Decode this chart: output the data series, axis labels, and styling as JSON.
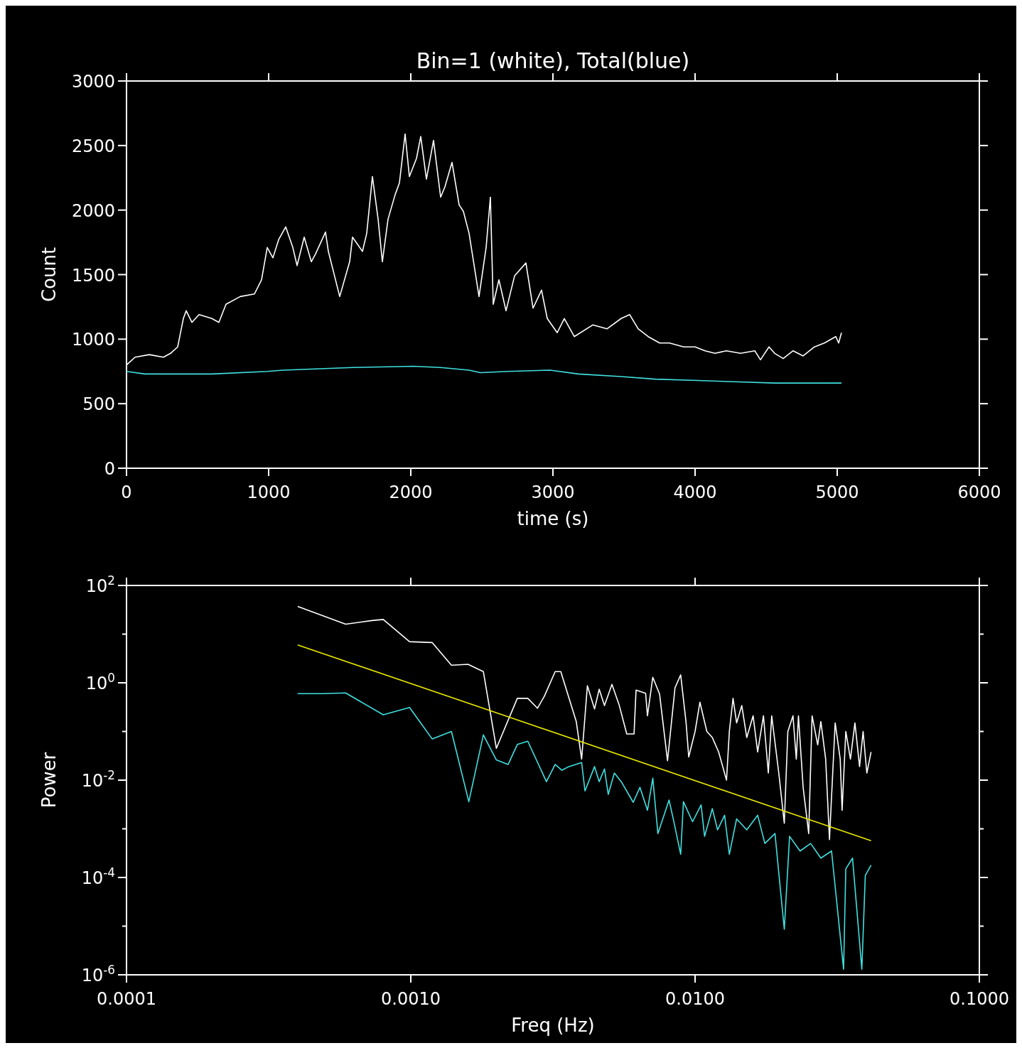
{
  "chart_data": [
    {
      "type": "line",
      "title": "Bin=1  (white), Total(blue)",
      "xlabel": "time (s)",
      "ylabel": "Count",
      "xlim": [
        0,
        6000
      ],
      "ylim": [
        0,
        3000
      ],
      "xticks": [
        0,
        1000,
        2000,
        3000,
        4000,
        5000,
        6000
      ],
      "yticks": [
        0,
        500,
        1000,
        1500,
        2000,
        2500,
        3000
      ],
      "series": [
        {
          "color": "#ffffff",
          "x": [
            0,
            60,
            160,
            260,
            310,
            360,
            400,
            420,
            460,
            510,
            600,
            650,
            700,
            800,
            900,
            950,
            990,
            1030,
            1070,
            1120,
            1170,
            1200,
            1250,
            1300,
            1330,
            1400,
            1420,
            1500,
            1570,
            1590,
            1660,
            1690,
            1730,
            1770,
            1800,
            1840,
            1890,
            1920,
            1960,
            1990,
            2040,
            2070,
            2110,
            2160,
            2210,
            2240,
            2290,
            2340,
            2370,
            2410,
            2480,
            2530,
            2560,
            2580,
            2620,
            2670,
            2730,
            2810,
            2860,
            2920,
            2960,
            3030,
            3080,
            3150,
            3280,
            3380,
            3480,
            3540,
            3600,
            3670,
            3750,
            3820,
            3920,
            4000,
            4070,
            4140,
            4220,
            4320,
            4420,
            4460,
            4520,
            4560,
            4620,
            4690,
            4760,
            4840,
            4910,
            4990,
            5010,
            5030
          ],
          "values": [
            800,
            860,
            880,
            860,
            890,
            940,
            1160,
            1220,
            1130,
            1190,
            1160,
            1130,
            1270,
            1330,
            1350,
            1460,
            1710,
            1630,
            1770,
            1870,
            1710,
            1570,
            1790,
            1600,
            1660,
            1830,
            1680,
            1330,
            1600,
            1790,
            1680,
            1820,
            2260,
            1930,
            1600,
            1930,
            2120,
            2210,
            2590,
            2260,
            2400,
            2570,
            2240,
            2540,
            2100,
            2180,
            2370,
            2040,
            1990,
            1820,
            1330,
            1710,
            2100,
            1270,
            1460,
            1220,
            1490,
            1590,
            1240,
            1380,
            1160,
            1050,
            1160,
            1020,
            1110,
            1080,
            1160,
            1190,
            1080,
            1020,
            970,
            970,
            940,
            940,
            910,
            890,
            910,
            890,
            910,
            840,
            940,
            890,
            850,
            910,
            870,
            940,
            970,
            1020,
            970,
            1050
          ]
        },
        {
          "color": "#40e0e0",
          "x": [
            0,
            130,
            600,
            990,
            1100,
            1590,
            2020,
            2210,
            2410,
            2490,
            2680,
            2980,
            3180,
            3480,
            3720,
            4020,
            4270,
            4560,
            4810,
            5030
          ],
          "values": [
            750,
            730,
            730,
            750,
            760,
            780,
            790,
            780,
            760,
            740,
            750,
            760,
            730,
            710,
            690,
            680,
            670,
            660,
            660,
            660
          ]
        }
      ]
    },
    {
      "type": "line",
      "xlabel": "Freq (Hz)",
      "ylabel": "Power",
      "log": "xy",
      "xlim": [
        0.0001,
        0.1
      ],
      "ylim": [
        1e-06,
        100
      ],
      "xticks": [
        {
          "value": 0.0001,
          "label": "0.0001"
        },
        {
          "value": 0.001,
          "label": "0.0010"
        },
        {
          "value": 0.01,
          "label": "0.0100"
        },
        {
          "value": 0.1,
          "label": "0.1000"
        }
      ],
      "yticks": [
        {
          "value": 1e-06,
          "label": "10$^{-6}$"
        },
        {
          "value": 1e-05,
          "label": null
        },
        {
          "value": 0.0001,
          "label": "10$^{-4}$"
        },
        {
          "value": 0.001,
          "label": null
        },
        {
          "value": 0.01,
          "label": "10$^{-2}$"
        },
        {
          "value": 0.1,
          "label": null
        },
        {
          "value": 1,
          "label": "10$^{0}$"
        },
        {
          "value": 10,
          "label": null
        },
        {
          "value": 100,
          "label": "10$^{2}$"
        }
      ],
      "series": [
        {
          "color": "#ffffff",
          "x": [
            0.0004,
            0.00059,
            0.00073,
            0.0008,
            0.00099,
            0.00119,
            0.00139,
            0.00159,
            0.0018,
            0.002,
            0.00237,
            0.00258,
            0.00279,
            0.00295,
            0.00322,
            0.00337,
            0.00382,
            0.00399,
            0.00418,
            0.00443,
            0.0046,
            0.0048,
            0.0051,
            0.0054,
            0.00575,
            0.0061,
            0.0062,
            0.0067,
            0.0068,
            0.0071,
            0.0075,
            0.008,
            0.0085,
            0.0089,
            0.0093,
            0.0095,
            0.01,
            0.0104,
            0.011,
            0.0115,
            0.0121,
            0.0129,
            0.0132,
            0.0136,
            0.014,
            0.0146,
            0.0152,
            0.016,
            0.0166,
            0.0174,
            0.0181,
            0.0186,
            0.0197,
            0.0206,
            0.0212,
            0.0221,
            0.0227,
            0.0231,
            0.024,
            0.0251,
            0.0258,
            0.027,
            0.0277,
            0.0288,
            0.0297,
            0.0311,
            0.0324,
            0.0329,
            0.0339,
            0.0352,
            0.0365,
            0.0379,
            0.039,
            0.0402,
            0.0416
          ],
          "values": [
            37,
            16,
            19,
            20,
            7,
            6.7,
            2.3,
            2.4,
            1.7,
            0.045,
            0.48,
            0.48,
            0.3,
            0.53,
            1.7,
            1.7,
            0.16,
            0.027,
            0.87,
            0.29,
            0.74,
            0.34,
            0.93,
            0.36,
            0.089,
            0.089,
            0.71,
            0.61,
            0.21,
            1.3,
            0.59,
            0.025,
            0.79,
            1.45,
            0.15,
            0.03,
            0.1,
            0.4,
            0.1,
            0.075,
            0.038,
            0.01,
            0.1,
            0.48,
            0.15,
            0.34,
            0.075,
            0.21,
            0.038,
            0.21,
            0.014,
            0.21,
            0.014,
            0.0013,
            0.1,
            0.21,
            0.027,
            0.21,
            0.007,
            0.0008,
            0.21,
            0.053,
            0.16,
            0.027,
            0.0006,
            0.15,
            0.027,
            0.0024,
            0.1,
            0.027,
            0.15,
            0.019,
            0.1,
            0.014,
            0.038
          ]
        },
        {
          "color": "#40e0e0",
          "x": [
            0.0004,
            0.00049,
            0.00059,
            0.0008,
            0.00099,
            0.00119,
            0.00139,
            0.0016,
            0.0018,
            0.002,
            0.0022,
            0.00237,
            0.00258,
            0.003,
            0.00322,
            0.0034,
            0.0036,
            0.00399,
            0.0041,
            0.00443,
            0.0046,
            0.0048,
            0.00495,
            0.0052,
            0.0055,
            0.00606,
            0.0064,
            0.0068,
            0.0071,
            0.0074,
            0.0081,
            0.0084,
            0.0089,
            0.0091,
            0.0098,
            0.0105,
            0.0108,
            0.0115,
            0.012,
            0.0127,
            0.0132,
            0.014,
            0.0152,
            0.0166,
            0.0176,
            0.0191,
            0.0206,
            0.0215,
            0.0234,
            0.0255,
            0.0277,
            0.0302,
            0.0333,
            0.0339,
            0.0358,
            0.0386,
            0.0397,
            0.0416
          ],
          "values": [
            0.6,
            0.6,
            0.62,
            0.22,
            0.31,
            0.07,
            0.1,
            0.0036,
            0.085,
            0.026,
            0.021,
            0.054,
            0.063,
            0.0093,
            0.021,
            0.016,
            0.019,
            0.023,
            0.006,
            0.019,
            0.0093,
            0.017,
            0.0051,
            0.014,
            0.0093,
            0.0035,
            0.0071,
            0.0024,
            0.011,
            0.0008,
            0.0039,
            0.0015,
            0.0003,
            0.0036,
            0.0014,
            0.0031,
            0.0007,
            0.0026,
            0.00095,
            0.0019,
            0.0003,
            0.0016,
            0.00095,
            0.0019,
            0.0005,
            0.0008,
            8.6e-06,
            0.0007,
            0.00035,
            0.0005,
            0.00025,
            0.00035,
            1.3e-06,
            0.00015,
            0.00025,
            1.3e-06,
            0.00011,
            0.00018
          ]
        },
        {
          "type": "line",
          "color": "#e8e800",
          "x": [
            0.0004,
            0.0416
          ],
          "values": [
            6,
            0.00057
          ]
        }
      ]
    }
  ]
}
